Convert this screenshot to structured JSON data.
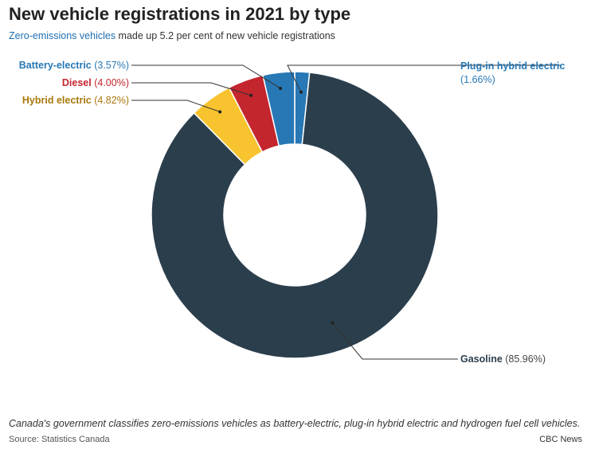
{
  "header": {
    "title": "New vehicle registrations in 2021 by type",
    "subtitle_highlight": "Zero-emissions vehicles",
    "subtitle_rest": " made up 5.2 per cent of new vehicle registrations"
  },
  "footer": {
    "note": "Canada's government classifies zero-emissions vehicles as battery-electric, plug-in hybrid electric and hydrogen fuel cell vehicles.",
    "source": "Source: Statistics Canada",
    "credit": "CBC News"
  },
  "chart_data": {
    "type": "pie",
    "donut": true,
    "slices": [
      {
        "name": "Plug-in hybrid electric",
        "value": 1.66,
        "display": "(1.66%)",
        "color": "#2878b5",
        "label_color": "#2878b5"
      },
      {
        "name": "Gasoline",
        "value": 85.96,
        "display": "(85.96%)",
        "color": "#2b3e4c",
        "label_color": "#2b3e4c"
      },
      {
        "name": "Hybrid electric",
        "value": 4.82,
        "display": "(4.82%)",
        "color": "#f7c32e",
        "label_color": "#a9780c"
      },
      {
        "name": "Diesel",
        "value": 4.0,
        "display": "(4.00%)",
        "color": "#c4262e",
        "label_color": "#c4262e"
      },
      {
        "name": "Battery-electric",
        "value": 3.57,
        "display": "(3.57%)",
        "color": "#2878b5",
        "label_color": "#2878b5"
      }
    ]
  }
}
